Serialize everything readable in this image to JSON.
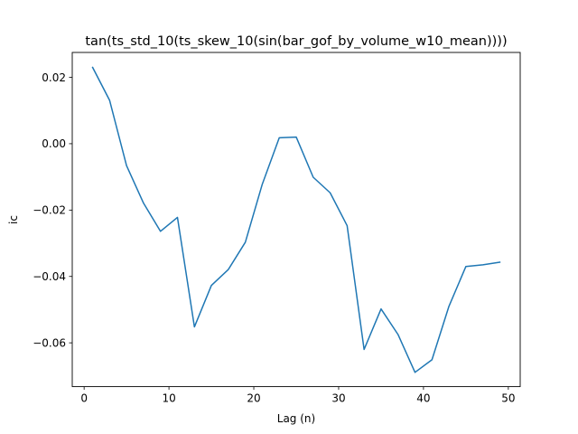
{
  "chart_data": {
    "type": "line",
    "title": "tan(ts_std_10(ts_skew_10(sin(bar_gof_by_volume_w10_mean))))",
    "xlabel": "Lag (n)",
    "ylabel": "ic",
    "xlim": [
      -1.4,
      51.4
    ],
    "ylim": [
      -0.0732,
      0.0275
    ],
    "xticks": [
      0,
      10,
      20,
      30,
      40,
      50
    ],
    "xtick_labels": [
      "0",
      "10",
      "20",
      "30",
      "40",
      "50"
    ],
    "yticks": [
      0.02,
      0.0,
      -0.02,
      -0.04,
      -0.06
    ],
    "ytick_labels": [
      "0.02",
      "0.00",
      "−0.02",
      "−0.04",
      "−0.06"
    ],
    "grid": false,
    "legend": "none",
    "series": [
      {
        "color": "#1f77b4",
        "x": [
          1,
          3,
          5,
          7,
          9,
          11,
          13,
          15,
          17,
          19,
          21,
          23,
          25,
          27,
          29,
          31,
          33,
          35,
          37,
          39,
          41,
          43,
          45,
          47,
          49
        ],
        "y": [
          0.023,
          0.0131,
          -0.0066,
          -0.0179,
          -0.0264,
          -0.0222,
          -0.0552,
          -0.0427,
          -0.0379,
          -0.0297,
          -0.0122,
          0.0018,
          0.002,
          -0.0101,
          -0.0148,
          -0.0247,
          -0.062,
          -0.0498,
          -0.0575,
          -0.0689,
          -0.0651,
          -0.049,
          -0.037,
          -0.0365,
          -0.0357
        ]
      }
    ]
  }
}
